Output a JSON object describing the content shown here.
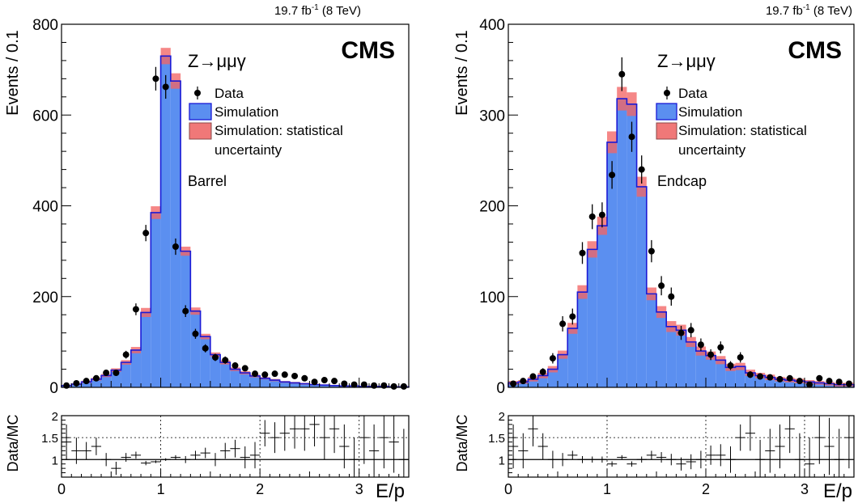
{
  "chart_data": [
    {
      "type": "bar",
      "panel": "Barrel",
      "lumi": "19.7 fb",
      "lumi_exp": "-1",
      "energy": "(8 TeV)",
      "cms": "CMS",
      "process": "Z→μμγ",
      "region": "Barrel",
      "ylabel": "Events / 0.1",
      "ratio_label": "Data/MC",
      "xlabel": "E/p",
      "xlim": [
        0,
        3.5
      ],
      "ylim": [
        0,
        800
      ],
      "ratio_ylim": [
        0.6,
        2.0
      ],
      "xticks": [
        0,
        1,
        2,
        3
      ],
      "yticks": [
        0,
        200,
        400,
        600,
        800
      ],
      "ratio_yticks": [
        1,
        1.5,
        2
      ],
      "ratio_ytick_labels": [
        "1",
        "1.5",
        "2"
      ],
      "legend": {
        "data": "Data",
        "simulation": "Simulation",
        "uncertainty_line1": "Simulation: statistical",
        "uncertainty_line2": "uncertainty"
      },
      "bin_width": 0.1,
      "bins_start": 0.0,
      "simulation": [
        4,
        7,
        12,
        18,
        26,
        38,
        55,
        82,
        165,
        385,
        730,
        675,
        300,
        168,
        112,
        72,
        55,
        40,
        32,
        25,
        20,
        16,
        12,
        10,
        8,
        6,
        5,
        4,
        3,
        3,
        2,
        2,
        2,
        1,
        1
      ],
      "uncertainty": [
        1.5,
        2,
        2.5,
        3,
        3.5,
        4,
        5,
        7,
        10,
        14,
        18,
        17,
        10,
        8,
        6,
        5,
        4.5,
        4,
        3.5,
        3,
        2.5,
        2.5,
        2,
        2,
        2,
        1.5,
        1.5,
        1.5,
        1.5,
        1.5,
        1.5,
        1.5,
        1.5,
        1.5,
        1.5
      ],
      "data": [
        4,
        9,
        14,
        20,
        32,
        32,
        72,
        172,
        340,
        680,
        662,
        310,
        168,
        118,
        86,
        66,
        60,
        48,
        42,
        30,
        28,
        30,
        28,
        25,
        20,
        12,
        16,
        14,
        8,
        6,
        6,
        4,
        4,
        2,
        2
      ],
      "data_err": [
        2,
        3,
        4,
        4.5,
        6,
        6,
        8.5,
        13,
        18,
        26,
        26,
        18,
        13,
        11,
        9,
        8,
        8,
        7,
        6.5,
        5.5,
        5.3,
        5.5,
        5.3,
        5,
        4.5,
        3.5,
        4,
        3.7,
        2.8,
        2.4,
        2.4,
        2,
        2,
        1.4,
        1.4
      ],
      "ratio": [
        1.4,
        1.2,
        1.2,
        1.3,
        1.0,
        0.8,
        1.05,
        1.1,
        0.92,
        0.95,
        1.0,
        1.05,
        1.0,
        1.1,
        1.15,
        1.0,
        1.2,
        1.25,
        1.05,
        1.1,
        1.6,
        1.5,
        1.6,
        1.7,
        1.7,
        1.8,
        1.5,
        1.7,
        1.3,
        1.0,
        1.5,
        1.2,
        1.5,
        1.4,
        1.0
      ],
      "ratio_err": [
        0.4,
        0.3,
        0.2,
        0.2,
        0.15,
        0.15,
        0.1,
        0.08,
        0.05,
        0.03,
        0.03,
        0.05,
        0.08,
        0.1,
        0.12,
        0.15,
        0.18,
        0.2,
        0.25,
        0.3,
        0.3,
        0.35,
        0.4,
        0.45,
        0.5,
        0.5,
        0.5,
        0.55,
        0.5,
        0.5,
        0.6,
        0.6,
        0.7,
        0.7,
        0.7
      ]
    },
    {
      "type": "bar",
      "panel": "Endcap",
      "lumi": "19.7 fb",
      "lumi_exp": "-1",
      "energy": "(8 TeV)",
      "cms": "CMS",
      "process": "Z→μμγ",
      "region": "Endcap",
      "ylabel": "Events / 0.1",
      "ratio_label": "Data/MC",
      "xlabel": "E/p",
      "xlim": [
        0,
        3.5
      ],
      "ylim": [
        0,
        400
      ],
      "ratio_ylim": [
        0.6,
        2.0
      ],
      "xticks": [
        0,
        1,
        2,
        3
      ],
      "yticks": [
        0,
        100,
        200,
        300,
        400
      ],
      "ratio_yticks": [
        1,
        1.5,
        2
      ],
      "ratio_ytick_labels": [
        "1",
        "1.5",
        "2"
      ],
      "legend": {
        "data": "Data",
        "simulation": "Simulation",
        "uncertainty_line1": "Simulation: statistical",
        "uncertainty_line2": "uncertainty"
      },
      "bin_width": 0.1,
      "bins_start": 0.0,
      "simulation": [
        5,
        6,
        9,
        13,
        20,
        36,
        65,
        105,
        152,
        178,
        270,
        318,
        312,
        221,
        103,
        83,
        67,
        63,
        50,
        40,
        35,
        30,
        22,
        23,
        16,
        13,
        11,
        9,
        8,
        7,
        6,
        5,
        4,
        3,
        3
      ],
      "uncertainty": [
        2,
        2,
        2.5,
        3,
        3.5,
        4.5,
        6,
        7.5,
        9,
        10,
        12,
        13,
        13,
        11,
        7,
        6.5,
        6,
        6,
        5.5,
        5,
        4.5,
        4.5,
        4,
        4,
        3.5,
        3,
        3,
        2.5,
        2.5,
        2.5,
        2,
        2,
        2,
        2,
        2
      ],
      "data": [
        4,
        7,
        12,
        17,
        32,
        70,
        78,
        148,
        188,
        190,
        234,
        345,
        276,
        240,
        150,
        112,
        100,
        60,
        63,
        47,
        36,
        44,
        24,
        33,
        14,
        12,
        11,
        9,
        10,
        7,
        3,
        10,
        7,
        6,
        4
      ],
      "data_err": [
        2,
        2.6,
        3.5,
        4.1,
        5.7,
        8.4,
        8.8,
        12,
        13.7,
        13.8,
        15.3,
        18.6,
        16.6,
        15.5,
        12.2,
        10.6,
        10,
        7.7,
        7.9,
        6.9,
        6,
        6.6,
        4.9,
        5.7,
        3.7,
        3.5,
        3.3,
        3,
        3.2,
        2.6,
        1.7,
        3.2,
        2.6,
        2.4,
        2
      ],
      "ratio": [
        1.3,
        1.2,
        1.7,
        1.3,
        1.0,
        1.0,
        1.1,
        1.0,
        1.0,
        1.0,
        0.9,
        1.05,
        0.9,
        1.0,
        1.1,
        1.05,
        1.0,
        0.9,
        0.95,
        1.0,
        1.1,
        1.1,
        1.0,
        1.5,
        1.6,
        1.0,
        1.2,
        1.3,
        1.7,
        1.0,
        0.9,
        1.5,
        1.3,
        1.0,
        1.5
      ],
      "ratio_err": [
        0.5,
        0.4,
        0.4,
        0.3,
        0.2,
        0.15,
        0.1,
        0.08,
        0.07,
        0.07,
        0.06,
        0.05,
        0.06,
        0.07,
        0.1,
        0.12,
        0.13,
        0.15,
        0.17,
        0.2,
        0.22,
        0.25,
        0.3,
        0.3,
        0.4,
        0.45,
        0.5,
        0.5,
        0.55,
        0.6,
        0.6,
        0.6,
        0.65,
        0.7,
        0.7
      ]
    }
  ]
}
